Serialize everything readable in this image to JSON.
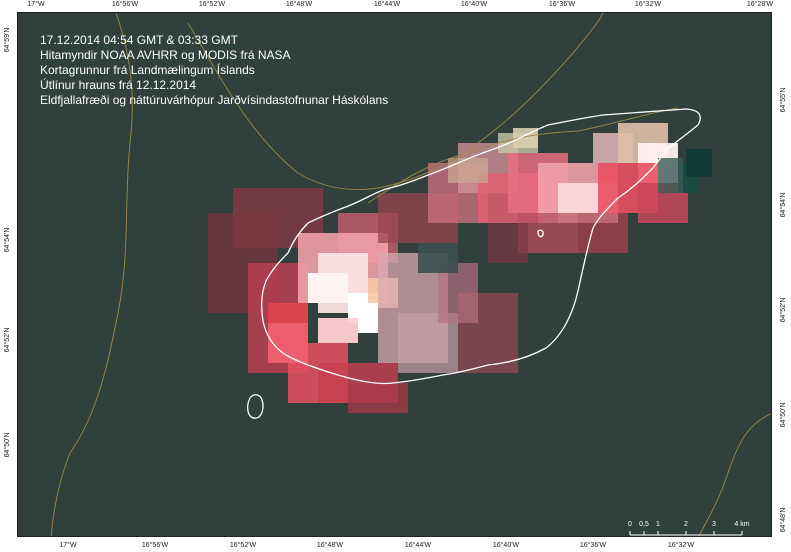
{
  "caption": {
    "line1": "17.12.2014  04:54 GMT & 03:33 GMT",
    "line2": "Hitamyndir NOAA AVHRR og MODIS frá NASA",
    "line3": "Kortagrunnur frá Landmælingum Íslands",
    "line4": "Útlínur hrauns frá 12.12.2014",
    "line5": "Eldfjallafræði og náttúruvárhópur Jarðvísindastofnunar Háskólans"
  },
  "axes": {
    "top": [
      "17°W",
      "16°56'W",
      "16°52'W",
      "16°48'W",
      "16°44'W",
      "16°40'W",
      "16°36'W",
      "16°32'W",
      "16°28'W"
    ],
    "bottom": [
      "17°W",
      "16°56'W",
      "16°52'W",
      "16°48'W",
      "16°44'W",
      "16°40'W",
      "16°36'W",
      "16°32'W"
    ],
    "left": [
      "64°59'N",
      "64°54'N",
      "64°52'N",
      "64°50'N"
    ],
    "right": [
      "64°55'N",
      "64°54'N",
      "64°52'N",
      "64°50'N",
      "64°48'N"
    ]
  },
  "scale_bar": {
    "labels": [
      "0",
      "0,5",
      "1",
      "2",
      "3",
      "4 km"
    ],
    "values_km": [
      0,
      0.5,
      1,
      2,
      3,
      4
    ]
  },
  "colors": {
    "background": "#313f3d",
    "outline": "#ffffff",
    "roads": "#a08a45",
    "hot_pixels": "#ff5060",
    "hottest_pixels": "#fff0f0"
  }
}
